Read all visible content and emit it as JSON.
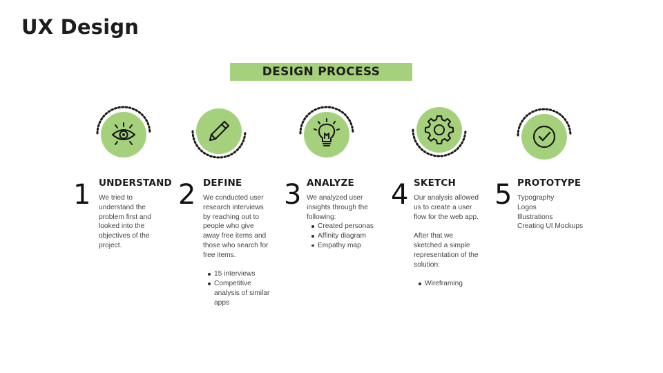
{
  "page": {
    "title": "UX Design"
  },
  "banner": {
    "text": "DESIGN PROCESS"
  },
  "colors": {
    "accent": "#a6d17c",
    "text": "#222222",
    "body": "#444444"
  },
  "steps": [
    {
      "number": "1",
      "title": "UNDERSTAND",
      "icon": "eye-icon",
      "paragraphs": [
        "We tried to understand the problem first and looked into the objectives of the project."
      ]
    },
    {
      "number": "2",
      "title": "DEFINE",
      "icon": "pencil-icon",
      "paragraphs": [
        "We conducted user research interviews by reaching out to people who give away free items and those who search for free items."
      ],
      "bullets": [
        "15 interviews",
        "Competitive analysis of similar apps"
      ]
    },
    {
      "number": "3",
      "title": "ANALYZE",
      "icon": "lightbulb-icon",
      "paragraphs": [
        "We analyzed user insights through the following:"
      ],
      "bullets": [
        "Created personas",
        "Affinity diagram",
        "Empathy map"
      ]
    },
    {
      "number": "4",
      "title": "SKETCH",
      "icon": "gear-icon",
      "paragraphs": [
        "Our analysis allowed us to create a user flow for the web app.",
        "After that we sketched a simple representation of the solution:"
      ],
      "bullets": [
        "Wireframing"
      ]
    },
    {
      "number": "5",
      "title": "PROTOTYPE",
      "icon": "checkmark-icon",
      "lines": [
        "Typography",
        "Logos",
        "Illustrations",
        "Creating UI Mockups"
      ]
    }
  ]
}
